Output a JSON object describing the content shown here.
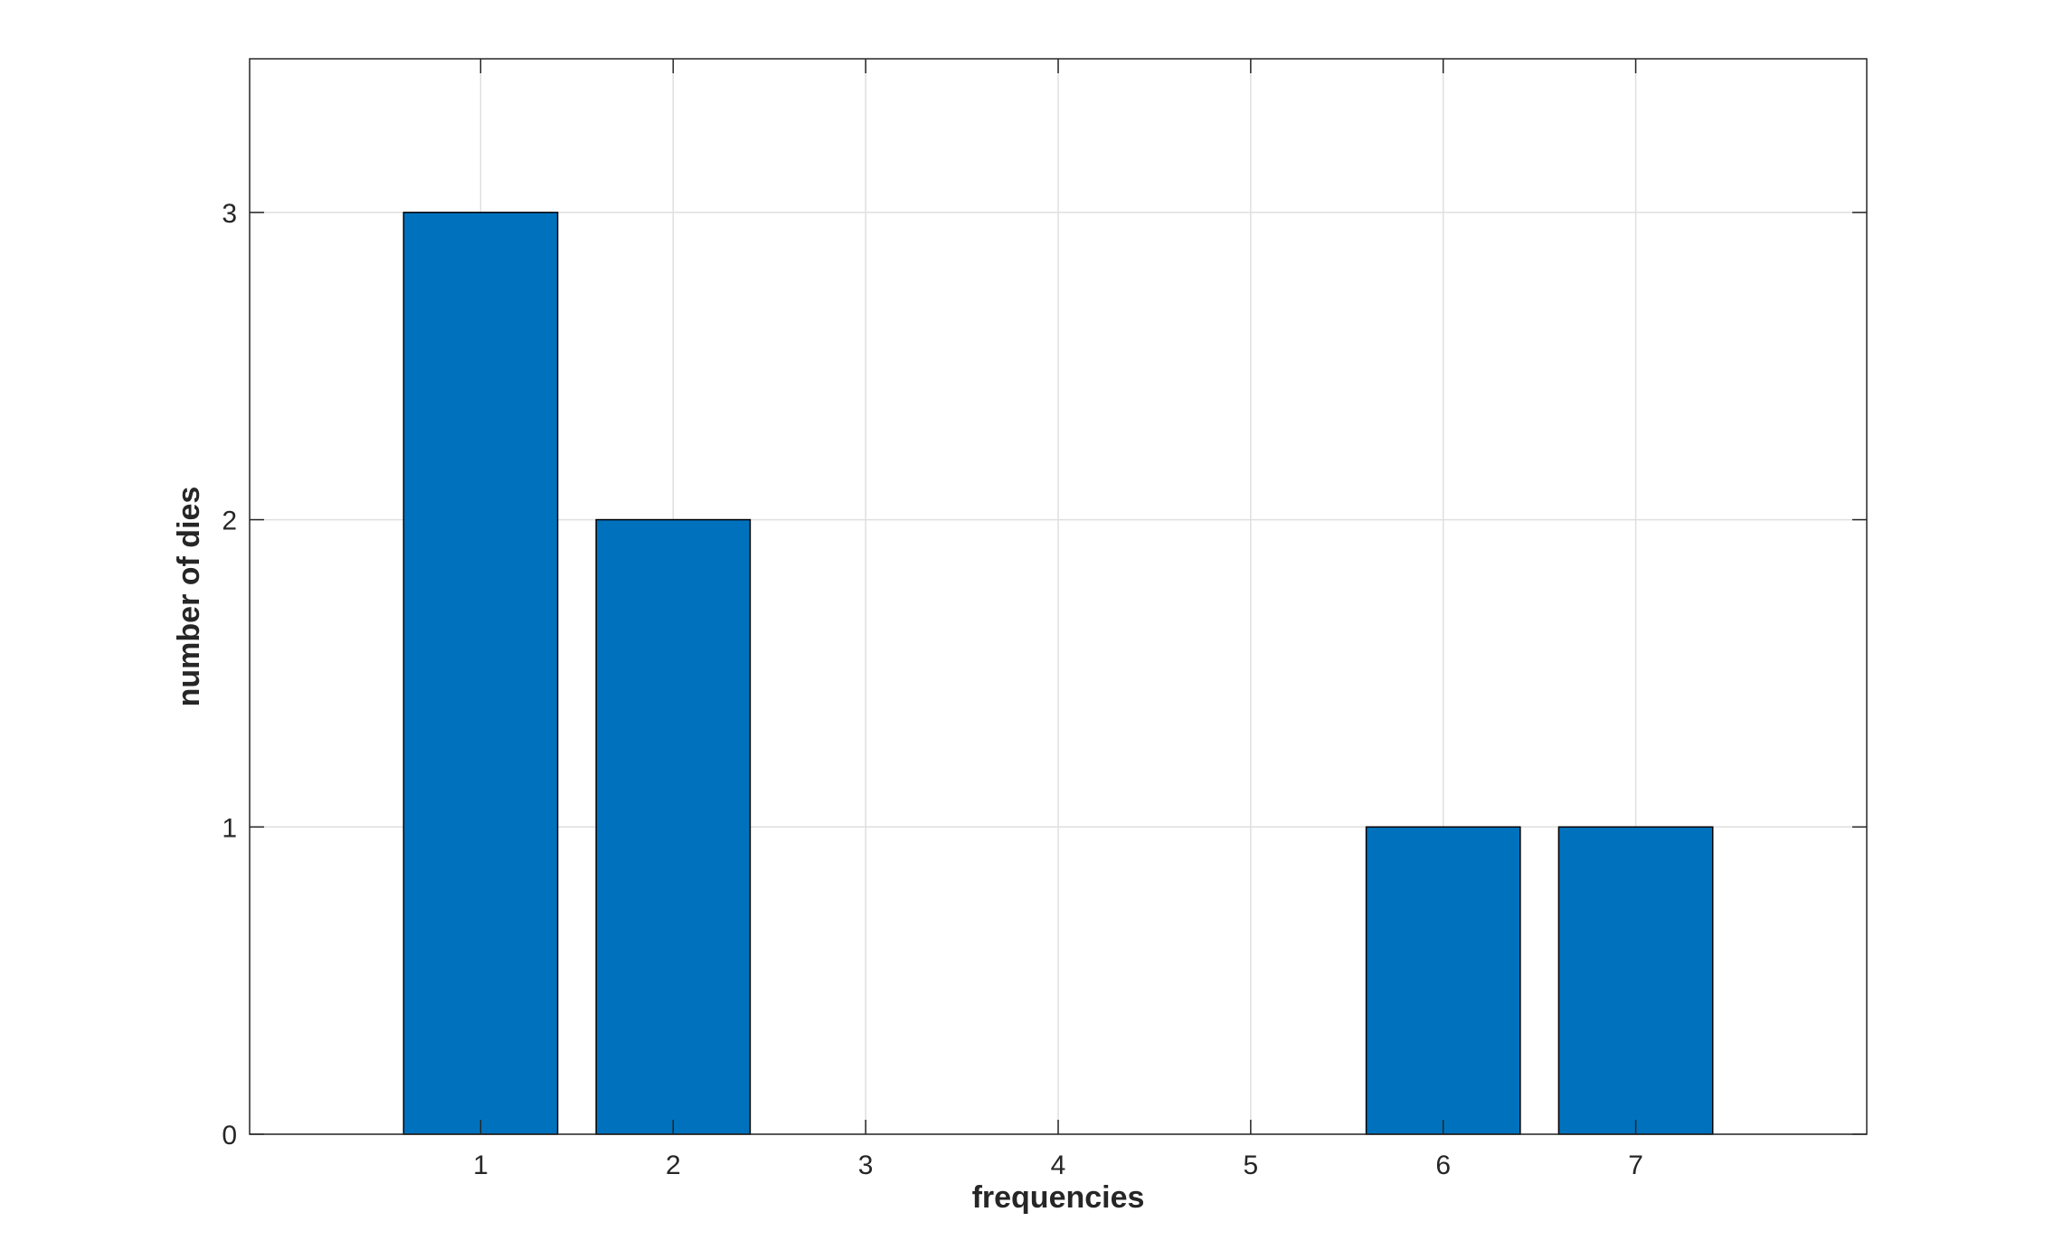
{
  "chart_data": {
    "type": "bar",
    "categories": [
      "1",
      "2",
      "3",
      "4",
      "5",
      "6",
      "7"
    ],
    "x": [
      1,
      2,
      3,
      4,
      5,
      6,
      7
    ],
    "values": [
      3,
      2,
      0,
      0,
      0,
      1,
      1
    ],
    "title": "",
    "xlabel": "frequencies",
    "ylabel": "number of dies",
    "xlim": [
      -0.2,
      8.2
    ],
    "ylim": [
      0,
      3.5
    ],
    "yticks": [
      0,
      1,
      2,
      3
    ],
    "grid": true,
    "bar_color": "#0072BD",
    "bar_edge_color": "#000000"
  }
}
